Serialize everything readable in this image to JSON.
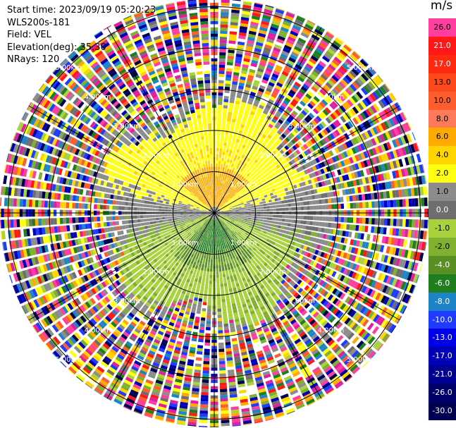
{
  "header": {
    "start_time": "Start time: 2023/09/19 05:20:23",
    "instrument": "WLS200s-181",
    "field": "Field: VEL",
    "elevation": "Elevation(deg): 35.30",
    "nrays": "NRays: 120"
  },
  "colorbar": {
    "unit": "m/s",
    "levels": [
      {
        "label": "26.0",
        "color": "#ff3e9e"
      },
      {
        "label": "21.0",
        "color": "#ff1818"
      },
      {
        "label": "17.0",
        "color": "#ff2b10"
      },
      {
        "label": "13.0",
        "color": "#ff4a1e"
      },
      {
        "label": "10.0",
        "color": "#ff5d2d"
      },
      {
        "label": "8.0",
        "color": "#ff7a5a"
      },
      {
        "label": "6.0",
        "color": "#ffaa00"
      },
      {
        "label": "4.0",
        "color": "#ffd400"
      },
      {
        "label": "2.0",
        "color": "#ffff10"
      },
      {
        "label": "1.0",
        "color": "#8c8c8c"
      },
      {
        "label": "0.0",
        "color": "#6e6e6e"
      },
      {
        "label": "-1.0",
        "color": "#a8d23c"
      },
      {
        "label": "-2.0",
        "color": "#7fb030"
      },
      {
        "label": "-4.0",
        "color": "#5a8f25"
      },
      {
        "label": "-6.0",
        "color": "#1f7f1f"
      },
      {
        "label": "-8.0",
        "color": "#1e84c8"
      },
      {
        "label": "-10.0",
        "color": "#1e3cff"
      },
      {
        "label": "-13.0",
        "color": "#0000e6"
      },
      {
        "label": "-17.0",
        "color": "#0000b4"
      },
      {
        "label": "-21.0",
        "color": "#000090"
      },
      {
        "label": "-26.0",
        "color": "#00006a"
      },
      {
        "label": "-30.0",
        "color": "#000050"
      }
    ]
  },
  "range_rings": {
    "labels": [
      "1.00km",
      "2.00km",
      "3.00km",
      "4.00km",
      "5.00km"
    ]
  },
  "noise_palette": [
    "#ff3e9e",
    "#ff1818",
    "#ffff10",
    "#ffd400",
    "#ffaa00",
    "#1e84c8",
    "#1e3cff",
    "#0000b4",
    "#000050",
    "#7fb030",
    "#1f7f1f",
    "#a8d23c",
    "#6e6e6e",
    "#8c8c8c",
    "#ffffff",
    "#ff5d2d",
    "#e01ea0"
  ]
}
